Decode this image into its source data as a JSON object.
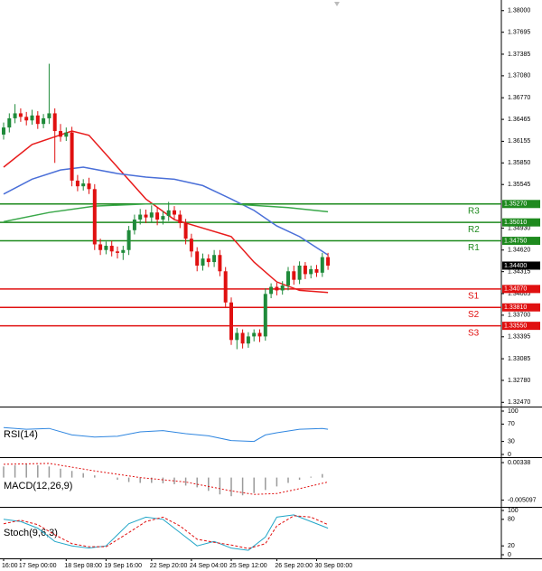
{
  "chart_data": {
    "type": "candlestick",
    "up_color": "#1f8a3a",
    "down_color": "#e01010",
    "ylim": [
      1.3241,
      1.3815
    ],
    "yticks": [
      {
        "value": 1.38,
        "label": "1.38000"
      },
      {
        "value": 1.37695,
        "label": "1.37695"
      },
      {
        "value": 1.37385,
        "label": "1.37385"
      },
      {
        "value": 1.3708,
        "label": "1.37080"
      },
      {
        "value": 1.3677,
        "label": "1.36770"
      },
      {
        "value": 1.36465,
        "label": "1.36465"
      },
      {
        "value": 1.36155,
        "label": "1.36155"
      },
      {
        "value": 1.3585,
        "label": "1.35850"
      },
      {
        "value": 1.35545,
        "label": "1.35545"
      },
      {
        "value": 1.3493,
        "label": "1.34930"
      },
      {
        "value": 1.3462,
        "label": "1.34620"
      },
      {
        "value": 1.34315,
        "label": "1.34315"
      },
      {
        "value": 1.34005,
        "label": "1.34005"
      },
      {
        "value": 1.337,
        "label": "1.33700"
      },
      {
        "value": 1.33395,
        "label": "1.33395"
      },
      {
        "value": 1.33085,
        "label": "1.33085"
      },
      {
        "value": 1.3278,
        "label": "1.32780"
      },
      {
        "value": 1.3247,
        "label": "1.32470"
      }
    ],
    "xticks": [
      {
        "value": 0,
        "label": "16:00"
      },
      {
        "value": 3,
        "label": "17 Sep 00:00"
      },
      {
        "value": 11,
        "label": "18 Sep 08:00"
      },
      {
        "value": 18,
        "label": "19 Sep 16:00"
      },
      {
        "value": 26,
        "label": "22 Sep 20:00"
      },
      {
        "value": 33,
        "label": "24 Sep 04:00"
      },
      {
        "value": 40,
        "label": "25 Sep 12:00"
      },
      {
        "value": 48,
        "label": "26 Sep 20:00"
      },
      {
        "value": 55,
        "label": "30 Sep 00:00"
      }
    ],
    "open": [
      1.3625,
      1.3635,
      1.3648,
      1.3655,
      1.365,
      1.3645,
      1.3652,
      1.364,
      1.3648,
      1.3655,
      1.363,
      1.3622,
      1.3628,
      1.356,
      1.3552,
      1.3556,
      1.3548,
      1.347,
      1.3462,
      1.3468,
      1.346,
      1.3458,
      1.3462,
      1.349,
      1.3505,
      1.3512,
      1.3508,
      1.3515,
      1.3505,
      1.351,
      1.3518,
      1.3512,
      1.35,
      1.3478,
      1.346,
      1.344,
      1.345,
      1.3445,
      1.3455,
      1.3432,
      1.3388,
      1.3335,
      1.3345,
      1.333,
      1.334,
      1.3345,
      1.334,
      1.34,
      1.341,
      1.3405,
      1.3412,
      1.3432,
      1.342,
      1.344,
      1.3428,
      1.3435,
      1.343,
      1.3452
    ],
    "high": [
      1.3642,
      1.3655,
      1.3668,
      1.3662,
      1.3657,
      1.366,
      1.3658,
      1.3654,
      1.3725,
      1.3662,
      1.364,
      1.3635,
      1.3636,
      1.3568,
      1.3562,
      1.3564,
      1.3555,
      1.3478,
      1.3474,
      1.3475,
      1.3467,
      1.3468,
      1.3496,
      1.3512,
      1.352,
      1.3519,
      1.3525,
      1.3522,
      1.3517,
      1.353,
      1.3524,
      1.3518,
      1.3506,
      1.3485,
      1.3466,
      1.3457,
      1.3456,
      1.3462,
      1.3462,
      1.3438,
      1.3395,
      1.3352,
      1.335,
      1.3346,
      1.335,
      1.335,
      1.3408,
      1.3415,
      1.3416,
      1.3418,
      1.3438,
      1.344,
      1.3446,
      1.3445,
      1.344,
      1.3441,
      1.3458,
      1.3458
    ],
    "low": [
      1.3618,
      1.3628,
      1.3641,
      1.3643,
      1.3638,
      1.3639,
      1.3633,
      1.3634,
      1.364,
      1.3585,
      1.3615,
      1.3616,
      1.3552,
      1.3545,
      1.3546,
      1.3541,
      1.3462,
      1.3455,
      1.3456,
      1.3453,
      1.345,
      1.3448,
      1.3455,
      1.3484,
      1.3498,
      1.35,
      1.3501,
      1.3497,
      1.3498,
      1.3503,
      1.3505,
      1.3493,
      1.347,
      1.3452,
      1.3432,
      1.3433,
      1.3438,
      1.3438,
      1.3425,
      1.338,
      1.3328,
      1.3322,
      1.3323,
      1.3324,
      1.3333,
      1.3332,
      1.3334,
      1.3394,
      1.3398,
      1.3399,
      1.3405,
      1.3413,
      1.3414,
      1.3421,
      1.3422,
      1.3424,
      1.3424,
      1.3434
    ],
    "close": [
      1.3635,
      1.3648,
      1.3655,
      1.365,
      1.3645,
      1.3652,
      1.364,
      1.3648,
      1.3655,
      1.363,
      1.3622,
      1.3628,
      1.356,
      1.3552,
      1.3556,
      1.3548,
      1.347,
      1.3462,
      1.3468,
      1.346,
      1.3458,
      1.3462,
      1.349,
      1.3505,
      1.3512,
      1.3508,
      1.3515,
      1.3505,
      1.351,
      1.3518,
      1.3512,
      1.35,
      1.3478,
      1.346,
      1.344,
      1.345,
      1.3445,
      1.3455,
      1.3432,
      1.3388,
      1.3335,
      1.3345,
      1.333,
      1.334,
      1.3345,
      1.334,
      1.34,
      1.341,
      1.3405,
      1.3412,
      1.3432,
      1.342,
      1.344,
      1.3428,
      1.3435,
      1.343,
      1.3452,
      1.344
    ],
    "moving_averages": [
      {
        "color": "#e81c1c",
        "index": [
          0,
          5,
          12,
          15,
          20,
          25,
          30,
          35,
          40,
          44,
          48,
          52,
          57
        ],
        "values": [
          1.3579,
          1.3611,
          1.363,
          1.3624,
          1.3579,
          1.3534,
          1.3505,
          1.3493,
          1.3481,
          1.3445,
          1.3417,
          1.3405,
          1.3402
        ]
      },
      {
        "color": "#4a6fd8",
        "index": [
          0,
          5,
          10,
          14,
          20,
          25,
          30,
          35,
          40,
          44,
          48,
          52,
          57
        ],
        "values": [
          1.3541,
          1.3562,
          1.3575,
          1.3579,
          1.357,
          1.3565,
          1.3562,
          1.3553,
          1.3534,
          1.3518,
          1.3496,
          1.3481,
          1.3455
        ]
      },
      {
        "color": "#3aa84a",
        "index": [
          0,
          8,
          16,
          25,
          40,
          50,
          57
        ],
        "values": [
          1.3502,
          1.3515,
          1.3524,
          1.3527,
          1.3527,
          1.3522,
          1.3516
        ]
      }
    ],
    "levels": [
      {
        "name": "R3",
        "value": 1.3527,
        "label": "1.35270",
        "color": "#1e8a1e"
      },
      {
        "name": "R2",
        "value": 1.3501,
        "label": "1.35010",
        "color": "#1e8a1e"
      },
      {
        "name": "R1",
        "value": 1.3475,
        "label": "1.34750",
        "color": "#1e8a1e"
      },
      {
        "name": "S1",
        "value": 1.3407,
        "label": "1.34070",
        "color": "#e01010"
      },
      {
        "name": "S2",
        "value": 1.3381,
        "label": "1.33810",
        "color": "#e01010"
      },
      {
        "name": "S3",
        "value": 1.3355,
        "label": "1.33550",
        "color": "#e01010"
      }
    ],
    "current_price": {
      "value": 1.344,
      "label": "1.34400",
      "color": "#000000"
    },
    "rsi": {
      "label": "RSI(14)",
      "color": "#2f86e0",
      "ylim": [
        0,
        100
      ],
      "yticks": [
        100,
        70,
        30,
        0
      ],
      "index": [
        0,
        4,
        8,
        12,
        16,
        20,
        24,
        28,
        32,
        36,
        40,
        44,
        46,
        48,
        52,
        56,
        57
      ],
      "values": [
        62,
        58,
        60,
        45,
        40,
        42,
        52,
        55,
        48,
        43,
        32,
        30,
        45,
        50,
        58,
        60,
        58
      ]
    },
    "macd": {
      "label": "MACD(12,26,9)",
      "color": "#9a9a9a",
      "signal_color": "#e01010",
      "ylim": [
        -0.0062,
        0.0042
      ],
      "yticks": [
        0.00338,
        -0.005097
      ],
      "hist_index": [
        0,
        2,
        4,
        6,
        8,
        10,
        12,
        14,
        16,
        18,
        20,
        22,
        24,
        26,
        28,
        30,
        32,
        34,
        36,
        38,
        40,
        42,
        44,
        46,
        48,
        50,
        52,
        54,
        56
      ],
      "histogram": [
        0.0025,
        0.0028,
        0.003,
        0.0028,
        0.0025,
        0.002,
        0.0015,
        0.001,
        0.0005,
        0,
        -0.0005,
        -0.001,
        -0.0012,
        -0.0012,
        -0.0013,
        -0.0015,
        -0.0018,
        -0.0022,
        -0.003,
        -0.0038,
        -0.0042,
        -0.004,
        -0.0035,
        -0.0028,
        -0.002,
        -0.0012,
        -0.0005,
        0.0002,
        0.0008
      ],
      "signal_index": [
        0,
        8,
        16,
        24,
        32,
        40,
        44,
        48,
        52,
        57
      ],
      "signal": [
        0.003,
        0.0032,
        0.0015,
        0.0,
        -0.001,
        -0.003,
        -0.0038,
        -0.0036,
        -0.0025,
        -0.001
      ]
    },
    "stoch": {
      "label": "Stoch(9,6,3)",
      "color": "#22a6c8",
      "signal_color": "#e01010",
      "ylim": [
        0,
        100
      ],
      "yticks": [
        100,
        80,
        20,
        0
      ],
      "index": [
        0,
        3,
        6,
        9,
        12,
        15,
        18,
        22,
        25,
        28,
        31,
        34,
        37,
        40,
        43,
        46,
        48,
        51,
        54,
        57
      ],
      "values": [
        80,
        75,
        60,
        30,
        20,
        15,
        20,
        70,
        85,
        80,
        50,
        20,
        30,
        15,
        10,
        40,
        85,
        90,
        75,
        60
      ],
      "signal": [
        70,
        78,
        68,
        45,
        25,
        18,
        18,
        50,
        75,
        85,
        65,
        35,
        28,
        22,
        14,
        25,
        65,
        88,
        85,
        68
      ]
    }
  }
}
